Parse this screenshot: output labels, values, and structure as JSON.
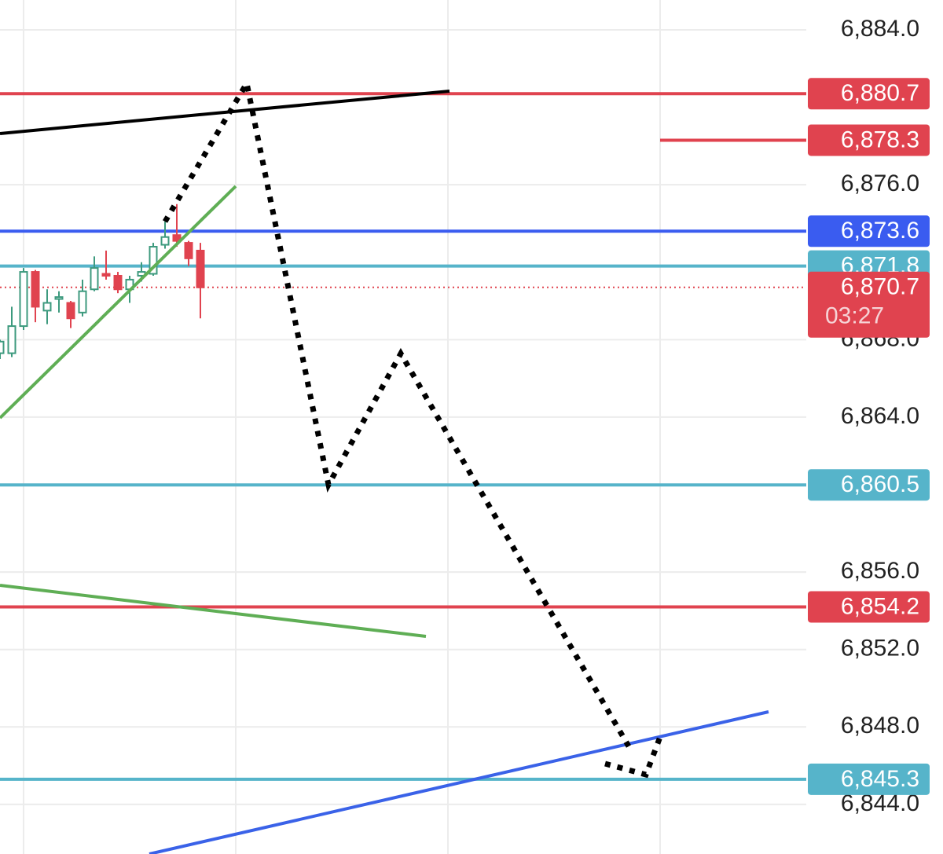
{
  "chart_data": {
    "type": "candlestick",
    "categories": [
      null,
      null,
      null,
      null,
      null,
      null,
      null,
      null,
      null,
      null,
      null,
      null,
      null,
      null,
      null,
      null,
      null,
      null
    ],
    "open": [
      6867.3,
      6867.3,
      6868.7,
      6871.5,
      6869.5,
      6870.1,
      6869.9,
      6869.4,
      6870.6,
      6871.4,
      6871.3,
      6870.6,
      6871.3,
      6871.4,
      6872.9,
      6873.4,
      6873.0,
      6872.6
    ],
    "high": [
      6868.0,
      6869.7,
      6871.7,
      6871.6,
      6870.6,
      6870.5,
      6870.0,
      6871.1,
      6872.3,
      6872.6,
      6871.5,
      6871.3,
      6872.0,
      6873.0,
      6874.1,
      6875.0,
      6873.1,
      6873.0
    ],
    "low": [
      6867.0,
      6867.1,
      6868.5,
      6868.9,
      6868.8,
      6869.4,
      6868.6,
      6869.2,
      6870.5,
      6871.1,
      6870.4,
      6869.9,
      6871.0,
      6871.3,
      6872.7,
      6872.8,
      6871.8,
      6869.1
    ],
    "close": [
      6867.9,
      6868.7,
      6871.5,
      6869.7,
      6869.9,
      6870.2,
      6869.1,
      6870.5,
      6871.7,
      6871.3,
      6870.6,
      6871.1,
      6871.5,
      6872.8,
      6873.3,
      6873.1,
      6872.2,
      6870.7
    ],
    "up_color": "#3d9a7e",
    "down_color": "#e0434f",
    "ylim": [
      6841.44,
      6885.54
    ],
    "yticks": [
      {
        "value": 6884,
        "label": "6,884.0"
      },
      {
        "value": 6876,
        "label": "6,876.0"
      },
      {
        "value": 6868,
        "label": "6,868.0"
      },
      {
        "value": 6864,
        "label": "6,864.0"
      },
      {
        "value": 6856,
        "label": "6,856.0"
      },
      {
        "value": 6852,
        "label": "6,852.0"
      },
      {
        "value": 6848,
        "label": "6,848.0"
      },
      {
        "value": 6844,
        "label": "6,844.0"
      }
    ],
    "grid": true,
    "levels": [
      {
        "value": 6880.7,
        "label": "6,880.7",
        "color": "#e0434f",
        "line": "horizontal"
      },
      {
        "value": 6878.3,
        "label": "6,878.3",
        "color": "#e0434f",
        "line": "segment"
      },
      {
        "value": 6873.6,
        "label": "6,873.6",
        "color": "#3a5cf0",
        "line": "horizontal"
      },
      {
        "value": 6871.8,
        "label": "6,871.8",
        "color": "#56b4ca",
        "line": "horizontal"
      },
      {
        "value": 6870.7,
        "label": "6,870.7",
        "color": "#e0434f",
        "line": "dotted",
        "countdown": "03:27"
      },
      {
        "value": 6860.5,
        "label": "6,860.5",
        "color": "#56b4ca",
        "line": "horizontal"
      },
      {
        "value": 6854.2,
        "label": "6,854.2",
        "color": "#e0434f",
        "line": "horizontal"
      },
      {
        "value": 6845.3,
        "label": "6,845.3",
        "color": "#56b4ca",
        "line": "horizontal"
      }
    ]
  }
}
